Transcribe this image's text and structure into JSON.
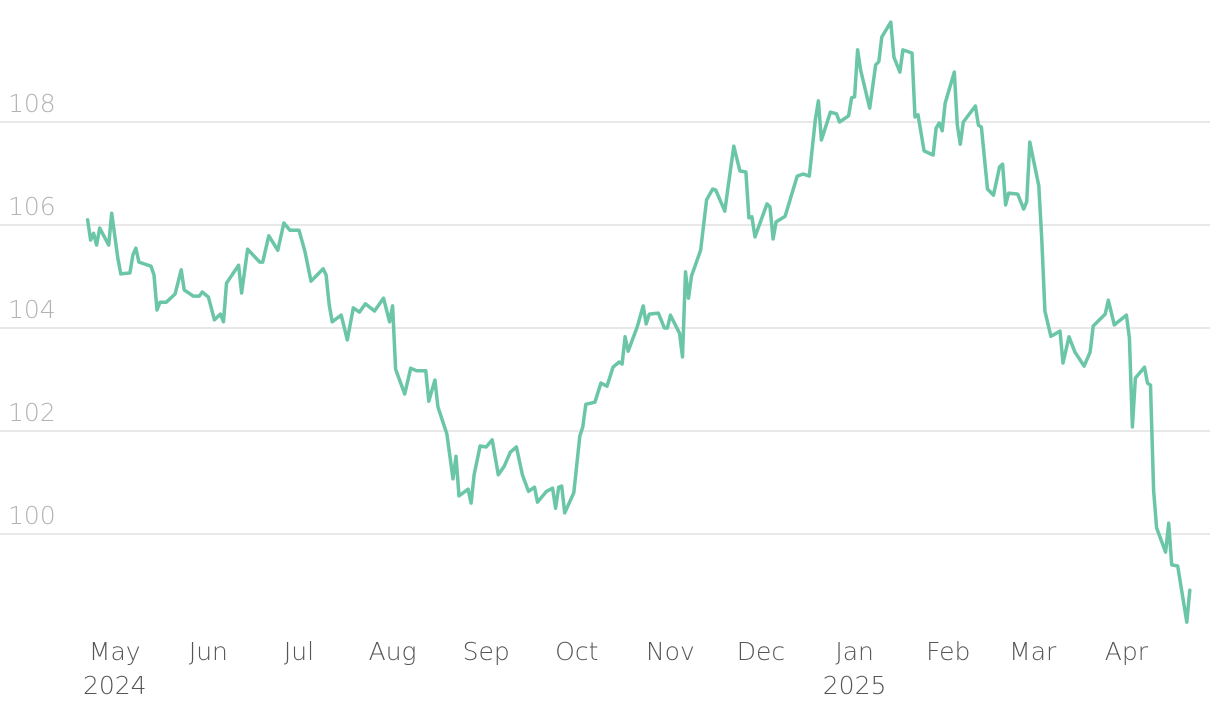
{
  "chart_data": {
    "type": "line",
    "color": "#6ac6a6",
    "grid": true,
    "xlim": [
      -38,
      366
    ],
    "ylim": [
      98.1,
      110.2
    ],
    "yticks": [
      100,
      102,
      104,
      106,
      108
    ],
    "xticks": [
      {
        "value": 0,
        "label": "May"
      },
      {
        "value": 31,
        "label": "Jun"
      },
      {
        "value": 61,
        "label": "Jul"
      },
      {
        "value": 92,
        "label": "Aug"
      },
      {
        "value": 123,
        "label": "Sep"
      },
      {
        "value": 153,
        "label": "Oct"
      },
      {
        "value": 184,
        "label": "Nov"
      },
      {
        "value": 214,
        "label": "Dec"
      },
      {
        "value": 245,
        "label": "Jan"
      },
      {
        "value": 276,
        "label": "Feb"
      },
      {
        "value": 304,
        "label": "Mar"
      },
      {
        "value": 335,
        "label": "Apr"
      }
    ],
    "x_year_labels": [
      {
        "value": 0,
        "label": "2024"
      },
      {
        "value": 245,
        "label": "2025"
      }
    ],
    "x": [
      -9,
      -8,
      -7,
      -6,
      -5,
      -2,
      -1,
      1,
      2,
      5,
      6,
      7,
      8,
      12,
      13,
      14,
      15,
      17,
      20,
      22,
      23,
      26,
      28,
      29,
      31,
      33,
      35,
      36,
      37,
      41,
      42,
      44,
      48,
      49,
      51,
      54,
      56,
      58,
      61,
      63,
      65,
      67,
      69,
      70,
      71,
      72,
      75,
      77,
      79,
      81,
      83,
      86,
      89,
      91,
      92,
      93,
      96,
      98,
      100,
      103,
      104,
      106,
      107,
      110,
      112,
      113,
      114,
      117,
      118,
      119,
      121,
      123,
      125,
      127,
      129,
      131,
      133,
      135,
      137,
      139,
      140,
      143,
      145,
      146,
      147,
      148,
      149,
      152,
      154,
      155,
      156,
      159,
      161,
      163,
      165,
      167,
      168,
      169,
      170,
      173,
      175,
      176,
      177,
      180,
      182,
      183,
      184,
      187,
      188,
      189,
      190,
      191,
      194,
      196,
      198,
      199,
      202,
      203,
      205,
      207,
      209,
      210,
      211,
      212,
      216,
      217,
      218,
      219,
      222,
      226,
      228,
      230,
      232,
      233,
      234,
      237,
      239,
      240,
      243,
      244,
      245,
      246,
      247,
      250,
      252,
      253,
      254,
      257,
      258,
      260,
      261,
      264,
      265,
      266,
      268,
      271,
      272,
      273,
      274,
      275,
      278,
      279,
      280,
      281,
      285,
      286,
      287,
      289,
      291,
      293,
      294,
      295,
      296,
      299,
      301,
      302,
      303,
      306,
      307,
      308,
      310,
      313,
      314,
      316,
      318,
      321,
      323,
      324,
      328,
      329,
      331,
      335,
      336,
      337,
      338,
      341,
      342,
      343,
      344,
      345,
      348,
      349,
      350,
      352,
      355,
      356
    ],
    "values": [
      106.1,
      105.71,
      105.84,
      105.61,
      105.94,
      105.61,
      106.23,
      105.36,
      105.05,
      105.07,
      105.42,
      105.55,
      105.28,
      105.2,
      105.03,
      104.35,
      104.5,
      104.5,
      104.66,
      105.13,
      104.74,
      104.62,
      104.62,
      104.7,
      104.6,
      104.16,
      104.27,
      104.12,
      104.87,
      105.22,
      104.68,
      105.53,
      105.28,
      105.28,
      105.79,
      105.51,
      106.04,
      105.9,
      105.9,
      105.48,
      104.91,
      105.03,
      105.15,
      105.03,
      104.45,
      104.12,
      104.25,
      103.77,
      104.39,
      104.31,
      104.47,
      104.33,
      104.58,
      104.12,
      104.43,
      103.2,
      102.72,
      103.22,
      103.17,
      103.17,
      102.58,
      102.99,
      102.47,
      101.94,
      101.07,
      101.51,
      100.74,
      100.87,
      100.6,
      101.15,
      101.71,
      101.69,
      101.83,
      101.15,
      101.32,
      101.59,
      101.69,
      101.15,
      100.83,
      100.91,
      100.62,
      100.83,
      100.89,
      100.5,
      100.91,
      100.93,
      100.41,
      100.8,
      101.9,
      102.08,
      102.52,
      102.56,
      102.93,
      102.87,
      103.24,
      103.34,
      103.3,
      103.83,
      103.55,
      104.02,
      104.43,
      104.08,
      104.27,
      104.29,
      104.0,
      104.0,
      104.25,
      103.9,
      103.44,
      105.09,
      104.58,
      105.01,
      105.51,
      106.49,
      106.7,
      106.68,
      106.27,
      106.7,
      107.53,
      107.05,
      107.03,
      106.14,
      106.16,
      105.77,
      106.41,
      106.35,
      105.73,
      106.06,
      106.17,
      106.95,
      106.99,
      106.95,
      108.04,
      108.41,
      107.65,
      108.19,
      108.16,
      108.0,
      108.12,
      108.47,
      108.49,
      109.4,
      109.01,
      108.27,
      109.11,
      109.17,
      109.65,
      109.94,
      109.26,
      108.97,
      109.4,
      109.34,
      108.1,
      108.14,
      107.44,
      107.36,
      107.88,
      107.98,
      107.83,
      108.37,
      108.97,
      107.94,
      107.57,
      108.0,
      108.31,
      107.94,
      107.9,
      106.7,
      106.58,
      107.13,
      107.18,
      106.39,
      106.62,
      106.6,
      106.31,
      106.45,
      107.61,
      106.76,
      105.71,
      104.33,
      103.84,
      103.94,
      103.32,
      103.83,
      103.53,
      103.26,
      103.53,
      104.04,
      104.27,
      104.54,
      104.06,
      104.25,
      103.81,
      102.08,
      103.03,
      103.24,
      102.93,
      102.89,
      100.85,
      100.12,
      99.65,
      100.21,
      99.4,
      99.38,
      98.29,
      98.91
    ]
  }
}
